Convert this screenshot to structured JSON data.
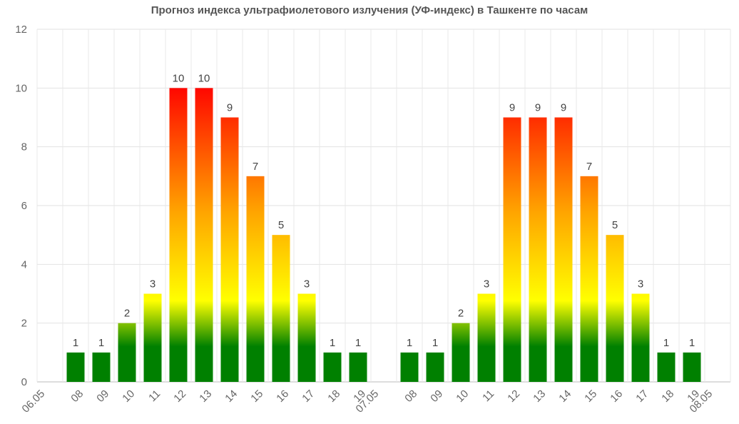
{
  "chart_data": {
    "type": "bar",
    "title": "Прогноз индекса ультрафиолетового излучения (УФ-индекс) в Ташкенте по часам",
    "xlabel": "",
    "ylabel": "",
    "ylim": [
      0,
      12
    ],
    "yticks": [
      "0",
      "2",
      "4",
      "6",
      "8",
      "10",
      "12"
    ],
    "grid": true,
    "categories": [
      "06.05",
      "08",
      "09",
      "10",
      "11",
      "12",
      "13",
      "14",
      "15",
      "16",
      "17",
      "18",
      "19",
      "07.05",
      "08",
      "09",
      "10",
      "11",
      "12",
      "13",
      "14",
      "15",
      "16",
      "17",
      "18",
      "19",
      "08.05"
    ],
    "values": [
      null,
      1,
      1,
      2,
      3,
      10,
      10,
      9,
      7,
      5,
      3,
      1,
      1,
      null,
      1,
      1,
      2,
      3,
      9,
      9,
      9,
      7,
      5,
      3,
      1,
      1,
      null
    ],
    "gradient_colors": [
      "#008000",
      "#ffff00",
      "#ffa500",
      "#ff0000"
    ]
  }
}
